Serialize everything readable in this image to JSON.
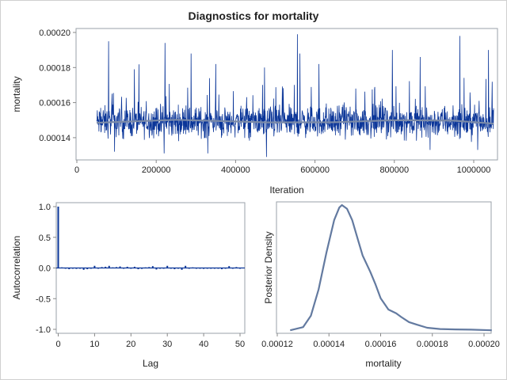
{
  "chart_data": [
    {
      "type": "line",
      "title": "Diagnostics for mortality",
      "xlabel": "Iteration",
      "ylabel": "mortality",
      "xlim": [
        0,
        1050000
      ],
      "ylim": [
        0.000128,
        0.000201
      ],
      "xticks": [
        "0",
        "200000",
        "400000",
        "600000",
        "800000",
        "1000000"
      ],
      "yticks": [
        "0.00014",
        "0.00016",
        "0.00018",
        "0.00020"
      ],
      "x_range": [
        50000,
        1050000
      ],
      "mean": 0.000149,
      "smoother": [
        [
          50000,
          0.0001485
        ],
        [
          250000,
          0.0001502
        ],
        [
          480000,
          0.0001487
        ],
        [
          650000,
          0.0001488
        ],
        [
          800000,
          0.00015
        ],
        [
          950000,
          0.0001497
        ],
        [
          1050000,
          0.000148
        ]
      ],
      "peaks": [
        [
          80000,
          0.000195
        ],
        [
          145000,
          0.000179
        ],
        [
          222000,
          0.000194
        ],
        [
          288000,
          0.000188
        ],
        [
          350000,
          0.000182
        ],
        [
          473000,
          0.00018
        ],
        [
          556000,
          0.000199
        ],
        [
          562000,
          0.000188
        ],
        [
          610000,
          0.000182
        ],
        [
          795000,
          0.00019
        ],
        [
          865000,
          0.000186
        ],
        [
          965000,
          0.000198
        ],
        [
          1037000,
          0.00019
        ]
      ],
      "troughs": [
        [
          95000,
          0.000132
        ],
        [
          220000,
          0.000131
        ],
        [
          330000,
          0.000131
        ],
        [
          478000,
          0.000129
        ],
        [
          890000,
          0.000133
        ],
        [
          1010000,
          0.000133
        ]
      ],
      "colors": {
        "trace": "#0a3598",
        "smoother": "#7a8aa8"
      }
    },
    {
      "type": "bar",
      "xlabel": "Lag",
      "ylabel": "Autocorrelation",
      "xlim": [
        0,
        51
      ],
      "ylim": [
        -1.05,
        1.05
      ],
      "xticks": [
        "0",
        "10",
        "20",
        "30",
        "40",
        "50"
      ],
      "yticks": [
        "-1.0",
        "-0.5",
        "0.0",
        "0.5",
        "1.0"
      ],
      "values": [
        1.0,
        0.01,
        0.0,
        -0.02,
        0.0,
        -0.015,
        0.0,
        -0.03,
        -0.02,
        0.0,
        0.035,
        -0.01,
        0.015,
        0.02,
        0.035,
        0.01,
        0.015,
        0.025,
        0.0,
        0.02,
        0.0,
        0.02,
        -0.02,
        -0.015,
        0.01,
        0.015,
        0.03,
        -0.025,
        -0.01,
        0.0,
        0.035,
        0.0,
        -0.02,
        0.0,
        -0.03,
        0.035,
        0.0,
        0.01,
        0.0,
        0.0,
        -0.015,
        -0.01,
        0.0,
        0.0,
        0.0,
        -0.02,
        0.0,
        0.03,
        0.0,
        0.015,
        0.0
      ],
      "colors": {
        "bar": "#0a3598"
      }
    },
    {
      "type": "line",
      "xlabel": "mortality",
      "ylabel": "Posterior Density",
      "xlim": [
        0.0001195,
        0.0002065
      ],
      "xticks": [
        "0.00012",
        "0.00014",
        "0.00016",
        "0.00018",
        "0.00020"
      ],
      "x": [
        0.000125,
        0.00013,
        0.000133,
        0.000136,
        0.000139,
        0.000142,
        0.000144,
        0.000145,
        0.000147,
        0.000149,
        0.000151,
        0.000153,
        0.000156,
        0.000158,
        0.00016,
        0.000163,
        0.000166,
        0.000168,
        0.000171,
        0.000174,
        0.000178,
        0.000183,
        0.000189,
        0.000195,
        0.000203
      ],
      "values": [
        0.005,
        0.03,
        0.12,
        0.33,
        0.62,
        0.88,
        0.98,
        1.0,
        0.97,
        0.88,
        0.74,
        0.6,
        0.47,
        0.37,
        0.26,
        0.17,
        0.14,
        0.11,
        0.07,
        0.05,
        0.025,
        0.015,
        0.012,
        0.01,
        0.005
      ],
      "colors": {
        "curve": "#637aa0"
      }
    }
  ]
}
